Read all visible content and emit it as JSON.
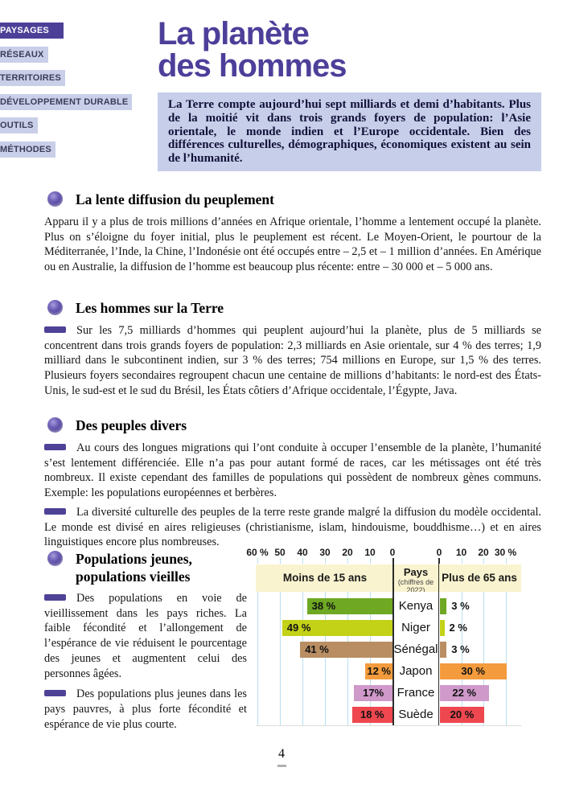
{
  "page_number": "4",
  "sidebar": {
    "tabs": [
      {
        "label": "PAYSAGES",
        "active": true,
        "color": "#4c3f97"
      },
      {
        "label": "RÉSEAUX",
        "active": false,
        "color": "#84bc26"
      },
      {
        "label": "TERRITOIRES",
        "active": false,
        "color": "#e5134d"
      },
      {
        "label": "DÉVELOPPEMENT DURABLE",
        "active": false,
        "color": "#2093d0"
      },
      {
        "label": "OUTILS",
        "active": false,
        "color": "#1ea13c"
      },
      {
        "label": "MÉTHODES",
        "active": false,
        "color": "#f69000"
      }
    ]
  },
  "title": {
    "line1": "La planète",
    "line2": "des hommes"
  },
  "intro": "La Terre compte aujourd’hui sept milliards et demi d’habitants. Plus de la moitié vit dans trois grands foyers de population: l’Asie orientale, le monde indien et l’Europe occidentale. Bien des différences culturelles, démographiques, économiques existent au sein de l’humanité.",
  "sections": [
    {
      "heading": "La lente diffusion du peuplement",
      "paragraphs": [
        {
          "text": "Apparu il y a plus de trois millions d’années en Afrique orientale, l’homme a lentement occupé la planète. Plus on s’éloigne du foyer initial, plus le peuplement est récent. Le Moyen-Orient, le pourtour de la Méditerranée, l’Inde, la Chine, l’Indonésie ont été occupés entre – 2,5 et – 1 million d’années. En Amérique ou en Australie, la diffusion de l’homme est beaucoup plus récente: entre – 30 000 et – 5 000 ans."
        }
      ]
    },
    {
      "heading": "Les hommes sur la Terre",
      "paragraphs": [
        {
          "text": "Sur les 7,5 milliards d’hommes qui peuplent aujourd’hui la planète, plus de 5 milliards se concentrent dans trois grands foyers de population: 2,3 milliards en Asie orientale, sur 4 % des terres; 1,9 milliard dans le subcontinent indien, sur 3 % des terres; 754 millions en Europe, sur 1,5 % des terres. Plusieurs foyers secondaires regroupent chacun une centaine de millions d’habitants: le nord-est des États-Unis, le sud-est et le sud du Brésil, les États côtiers d’Afrique occidentale, l’Égypte, Java."
        }
      ]
    },
    {
      "heading": "Des peuples divers",
      "paragraphs": [
        {
          "text": "Au cours des longues migrations qui l’ont conduite à occuper l’ensemble de la planète, l’humanité s’est lentement différenciée. Elle n’a pas pour autant formé de races, car les métissages ont été très nombreux. Il existe cependant des familles de populations qui possèdent de nombreux gènes communs. Exemple: les populations européennes et berbères."
        },
        {
          "text": "La diversité culturelle des peuples de la terre reste grande malgré la diffusion du modèle occidental. Le monde est divisé en aires religieuses (christianisme, islam, hindouisme, bouddhisme…) et en aires linguistiques encore plus nombreuses."
        }
      ]
    },
    {
      "heading": "Populations jeunes, populations vieilles",
      "paragraphs": [
        {
          "text": "Des populations en voie de vieillissement dans les pays riches. La faible fécondité et l’allongement de l’espérance de vie réduisent le pourcentage des jeunes et augmentent celui des personnes âgées."
        },
        {
          "text": "Des populations plus jeunes dans les pays pauvres, à plus forte fécondité et espérance de vie plus courte."
        }
      ]
    }
  ],
  "chart_data": {
    "type": "bar",
    "title_left": "Moins de 15 ans",
    "title_center": "Pays",
    "title_center_sub": "(chiffres de 2022)",
    "title_right": "Plus de 65 ans",
    "left_axis_ticks": [
      "60 %",
      "50",
      "40",
      "30",
      "20",
      "10",
      "0"
    ],
    "left_axis_values": [
      60,
      50,
      40,
      30,
      20,
      10,
      0
    ],
    "right_axis_ticks": [
      "0",
      "10",
      "20",
      "30 %"
    ],
    "right_axis_values": [
      0,
      10,
      20,
      30
    ],
    "left_max": 60,
    "right_max": 30,
    "categories": [
      "Kenya",
      "Niger",
      "Sénégal",
      "Japon",
      "France",
      "Suède"
    ],
    "series": [
      {
        "name": "Moins de 15 ans",
        "values": [
          38,
          49,
          41,
          12,
          17,
          18
        ]
      },
      {
        "name": "Plus de 65 ans",
        "values": [
          3,
          2,
          3,
          30,
          22,
          20
        ]
      }
    ],
    "labels_left": [
      "38 %",
      "49 %",
      "41 %",
      "12 %",
      "17%",
      "18 %"
    ],
    "labels_right": [
      "3 %",
      "2 %",
      "3 %",
      "30 %",
      "22 %",
      "20 %"
    ],
    "colors": [
      "#6fa822",
      "#c3d117",
      "#b98e63",
      "#f39b3d",
      "#cf99c9",
      "#ee474f"
    ],
    "gridline_color": "#b8dff0",
    "band_color": "#f9f3cf",
    "legend_position": "top",
    "grid": true
  }
}
